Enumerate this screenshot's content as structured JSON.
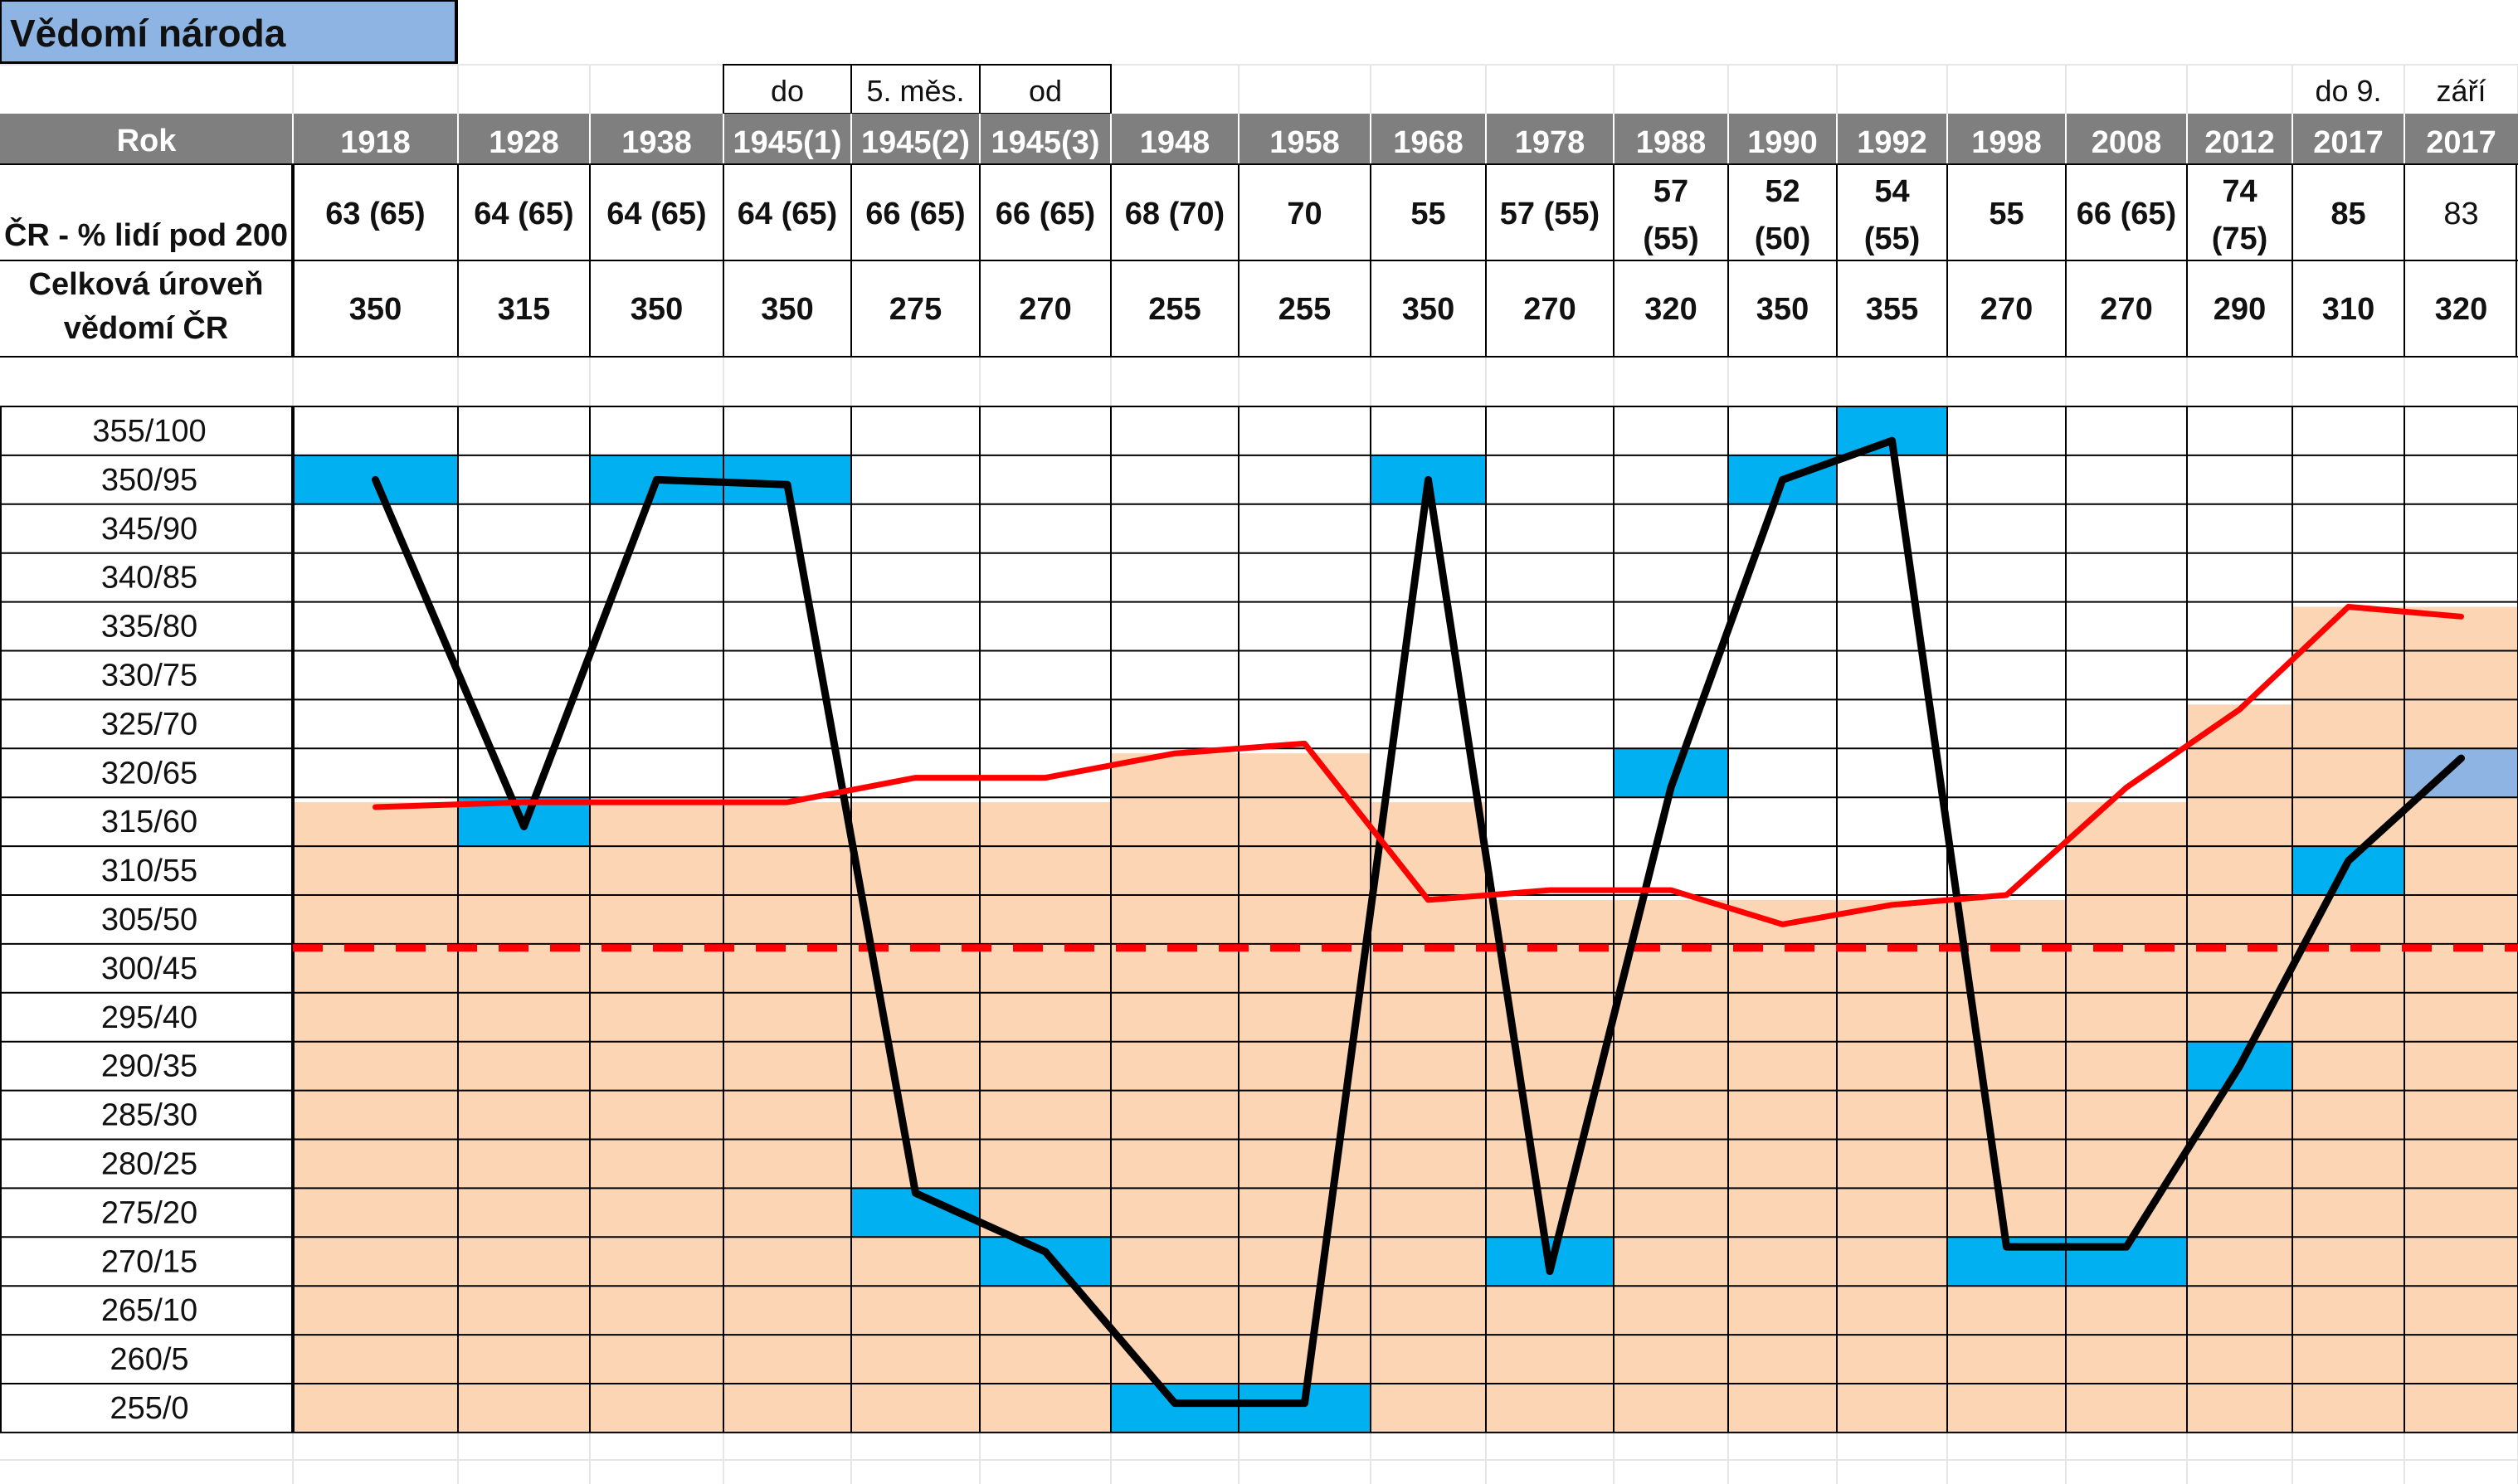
{
  "title": "Vědomí národa",
  "header_notes": {
    "1945(1)": "do",
    "1945(2)": "5.  měs.",
    "1945(3)": "od",
    "2017a": "do 9.",
    "2017b": "září"
  },
  "row_labels": {
    "year": "Rok",
    "percent": "ČR - % lidí pod 200",
    "level_line1": "Celková úroveň",
    "level_line2": "vědomí ČR"
  },
  "colors": {
    "title_bg": "#8DB4E2",
    "header_bg": "#7F7F7F",
    "peach": "#FCD5B4",
    "blue_cell": "#00B0F0",
    "light_blue_cell": "#8DB4E2",
    "black_line": "#000000",
    "red_line": "#FF0000"
  },
  "chart_data": {
    "type": "line",
    "title": "Vědomí národa",
    "categories": [
      "1918",
      "1928",
      "1938",
      "1945(1)",
      "1945(2)",
      "1945(3)",
      "1948",
      "1958",
      "1968",
      "1978",
      "1988",
      "1990",
      "1992",
      "1998",
      "2008",
      "2012",
      "2017",
      "2017"
    ],
    "percent_labels": [
      [
        "63 (65)"
      ],
      [
        "64 (65)"
      ],
      [
        "64 (65)"
      ],
      [
        "64 (65)"
      ],
      [
        "66 (65)"
      ],
      [
        "66 (65)"
      ],
      [
        "68 (70)"
      ],
      [
        "70"
      ],
      [
        "55"
      ],
      [
        "57 (55)"
      ],
      [
        "57",
        "(55)"
      ],
      [
        "52",
        "(50)"
      ],
      [
        "54",
        "(55)"
      ],
      [
        "55"
      ],
      [
        "66 (65)"
      ],
      [
        "74",
        "(75)"
      ],
      [
        "85"
      ],
      [
        "83"
      ]
    ],
    "level_labels": [
      "350",
      "315",
      "350",
      "350",
      "275",
      "270",
      "255",
      "255",
      "350",
      "270",
      "320",
      "350",
      "355",
      "270",
      "270",
      "290",
      "310",
      "320"
    ],
    "y_ticks": [
      "355/100",
      "350/95",
      "345/90",
      "340/85",
      "335/80",
      "330/75",
      "325/70",
      "320/65",
      "315/60",
      "310/55",
      "305/50",
      "300/45",
      "295/40",
      "290/35",
      "285/30",
      "280/25",
      "275/20",
      "270/15",
      "265/10",
      "260/5",
      "255/0"
    ],
    "ylim": [
      255,
      355
    ],
    "threshold": 302,
    "peach_baseline": [
      317,
      317,
      317,
      317,
      317,
      317,
      322,
      322,
      317,
      307,
      307,
      307,
      307,
      307,
      317,
      327,
      337,
      337
    ],
    "highlight_cells": [
      {
        "col": 0,
        "value": 350,
        "color": "blue"
      },
      {
        "col": 1,
        "value": 315,
        "color": "blue"
      },
      {
        "col": 2,
        "value": 350,
        "color": "blue"
      },
      {
        "col": 3,
        "value": 350,
        "color": "blue"
      },
      {
        "col": 4,
        "value": 275,
        "color": "blue"
      },
      {
        "col": 5,
        "value": 270,
        "color": "blue"
      },
      {
        "col": 6,
        "value": 255,
        "color": "blue"
      },
      {
        "col": 7,
        "value": 255,
        "color": "blue"
      },
      {
        "col": 8,
        "value": 350,
        "color": "blue"
      },
      {
        "col": 9,
        "value": 270,
        "color": "blue"
      },
      {
        "col": 10,
        "value": 320,
        "color": "blue"
      },
      {
        "col": 11,
        "value": 350,
        "color": "blue"
      },
      {
        "col": 12,
        "value": 355,
        "color": "blue"
      },
      {
        "col": 13,
        "value": 270,
        "color": "blue"
      },
      {
        "col": 14,
        "value": 270,
        "color": "blue"
      },
      {
        "col": 15,
        "value": 290,
        "color": "blue"
      },
      {
        "col": 16,
        "value": 310,
        "color": "blue"
      },
      {
        "col": 17,
        "value": 320,
        "color": "lightblue"
      }
    ],
    "series": [
      {
        "values": [
          350,
          314.5,
          350,
          349.5,
          277,
          271,
          255.5,
          255.5,
          350,
          269,
          318.5,
          350,
          354,
          271.5,
          271.5,
          290,
          311,
          321.5
        ]
      },
      {
        "values": [
          316.5,
          317,
          317,
          317,
          319.5,
          319.5,
          322,
          323,
          307,
          308,
          308,
          304.5,
          306.5,
          307.5,
          318.5,
          326.5,
          337,
          336
        ]
      }
    ]
  }
}
